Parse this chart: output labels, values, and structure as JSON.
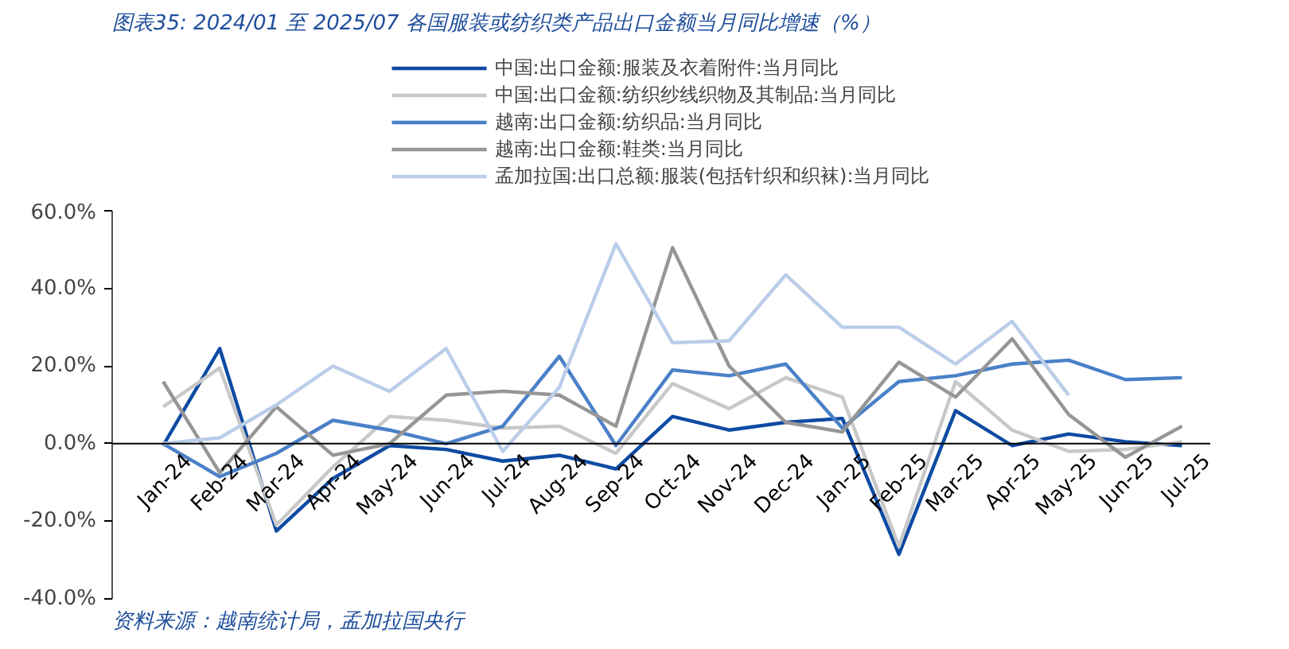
{
  "chart_data": {
    "type": "line",
    "title": "图表35:  2024/01 至 2025/07 各国服装或纺织类产品出口金额当月同比增速（%）",
    "categories": [
      "Jan-24",
      "Feb-24",
      "Mar-24",
      "Apr-24",
      "May-24",
      "Jun-24",
      "Jul-24",
      "Aug-24",
      "Sep-24",
      "Oct-24",
      "Nov-24",
      "Dec-24",
      "Jan-25",
      "Feb-25",
      "Mar-25",
      "Apr-25",
      "May-25",
      "Jun-25",
      "Jul-25"
    ],
    "series": [
      {
        "name": "中国:出口金额:服装及衣着附件:当月同比",
        "color": "#0e4ba3",
        "values": [
          -0.5,
          24.5,
          -22.5,
          -9,
          -0.5,
          -1.5,
          -4.5,
          -3,
          -6.5,
          7,
          3.5,
          5.5,
          6.5,
          -28.5,
          8.5,
          -0.5,
          2.5,
          0.5,
          -0.5
        ]
      },
      {
        "name": "中国:出口金额:纺织纱线织物及其制品:当月同比",
        "color": "#c8c8c8",
        "values": [
          9.5,
          19.5,
          -21,
          -6,
          7,
          6,
          4,
          4.5,
          -2.5,
          15.5,
          9,
          17,
          12,
          -26.5,
          16,
          3.5,
          -2,
          -1.5,
          0.5
        ]
      },
      {
        "name": "越南:出口金额:纺织品:当月同比",
        "color": "#4a80c8",
        "values": [
          0,
          -8.5,
          -2.5,
          6,
          3.5,
          0,
          4.5,
          22.5,
          -0.5,
          19,
          17.5,
          20.5,
          4,
          16,
          17.5,
          20.5,
          21.5,
          16.5,
          17
        ]
      },
      {
        "name": "越南:出口金额:鞋类:当月同比",
        "color": "#969696",
        "values": [
          16,
          -7.5,
          9.5,
          -3,
          0,
          12.5,
          13.5,
          12.5,
          4.5,
          50.5,
          20,
          5.5,
          3,
          21,
          12,
          27,
          7.5,
          -3.5,
          4.5
        ]
      },
      {
        "name": "孟加拉国:出口总额:服装(包括针织和织袜):当月同比",
        "color": "#bacde9",
        "values": [
          0,
          1.5,
          10,
          20,
          13.5,
          24.5,
          -2,
          14.5,
          51.5,
          26,
          26.5,
          43.5,
          30,
          30,
          20.5,
          31.5,
          12.5,
          null,
          null
        ]
      }
    ],
    "ylim": [
      -40,
      60
    ],
    "yticks": [
      {
        "value": -40,
        "label": "-40.0%"
      },
      {
        "value": -20,
        "label": "-20.0%"
      },
      {
        "value": 0,
        "label": "0.0%"
      },
      {
        "value": 20,
        "label": "20.0%"
      },
      {
        "value": 40,
        "label": "40.0%"
      },
      {
        "value": 60,
        "label": "60.0%"
      }
    ],
    "grid": false,
    "legend": "top",
    "line_style": "solid",
    "marker": "none",
    "annotations": [
      "资料来源：越南统计局，孟加拉国央行"
    ]
  }
}
